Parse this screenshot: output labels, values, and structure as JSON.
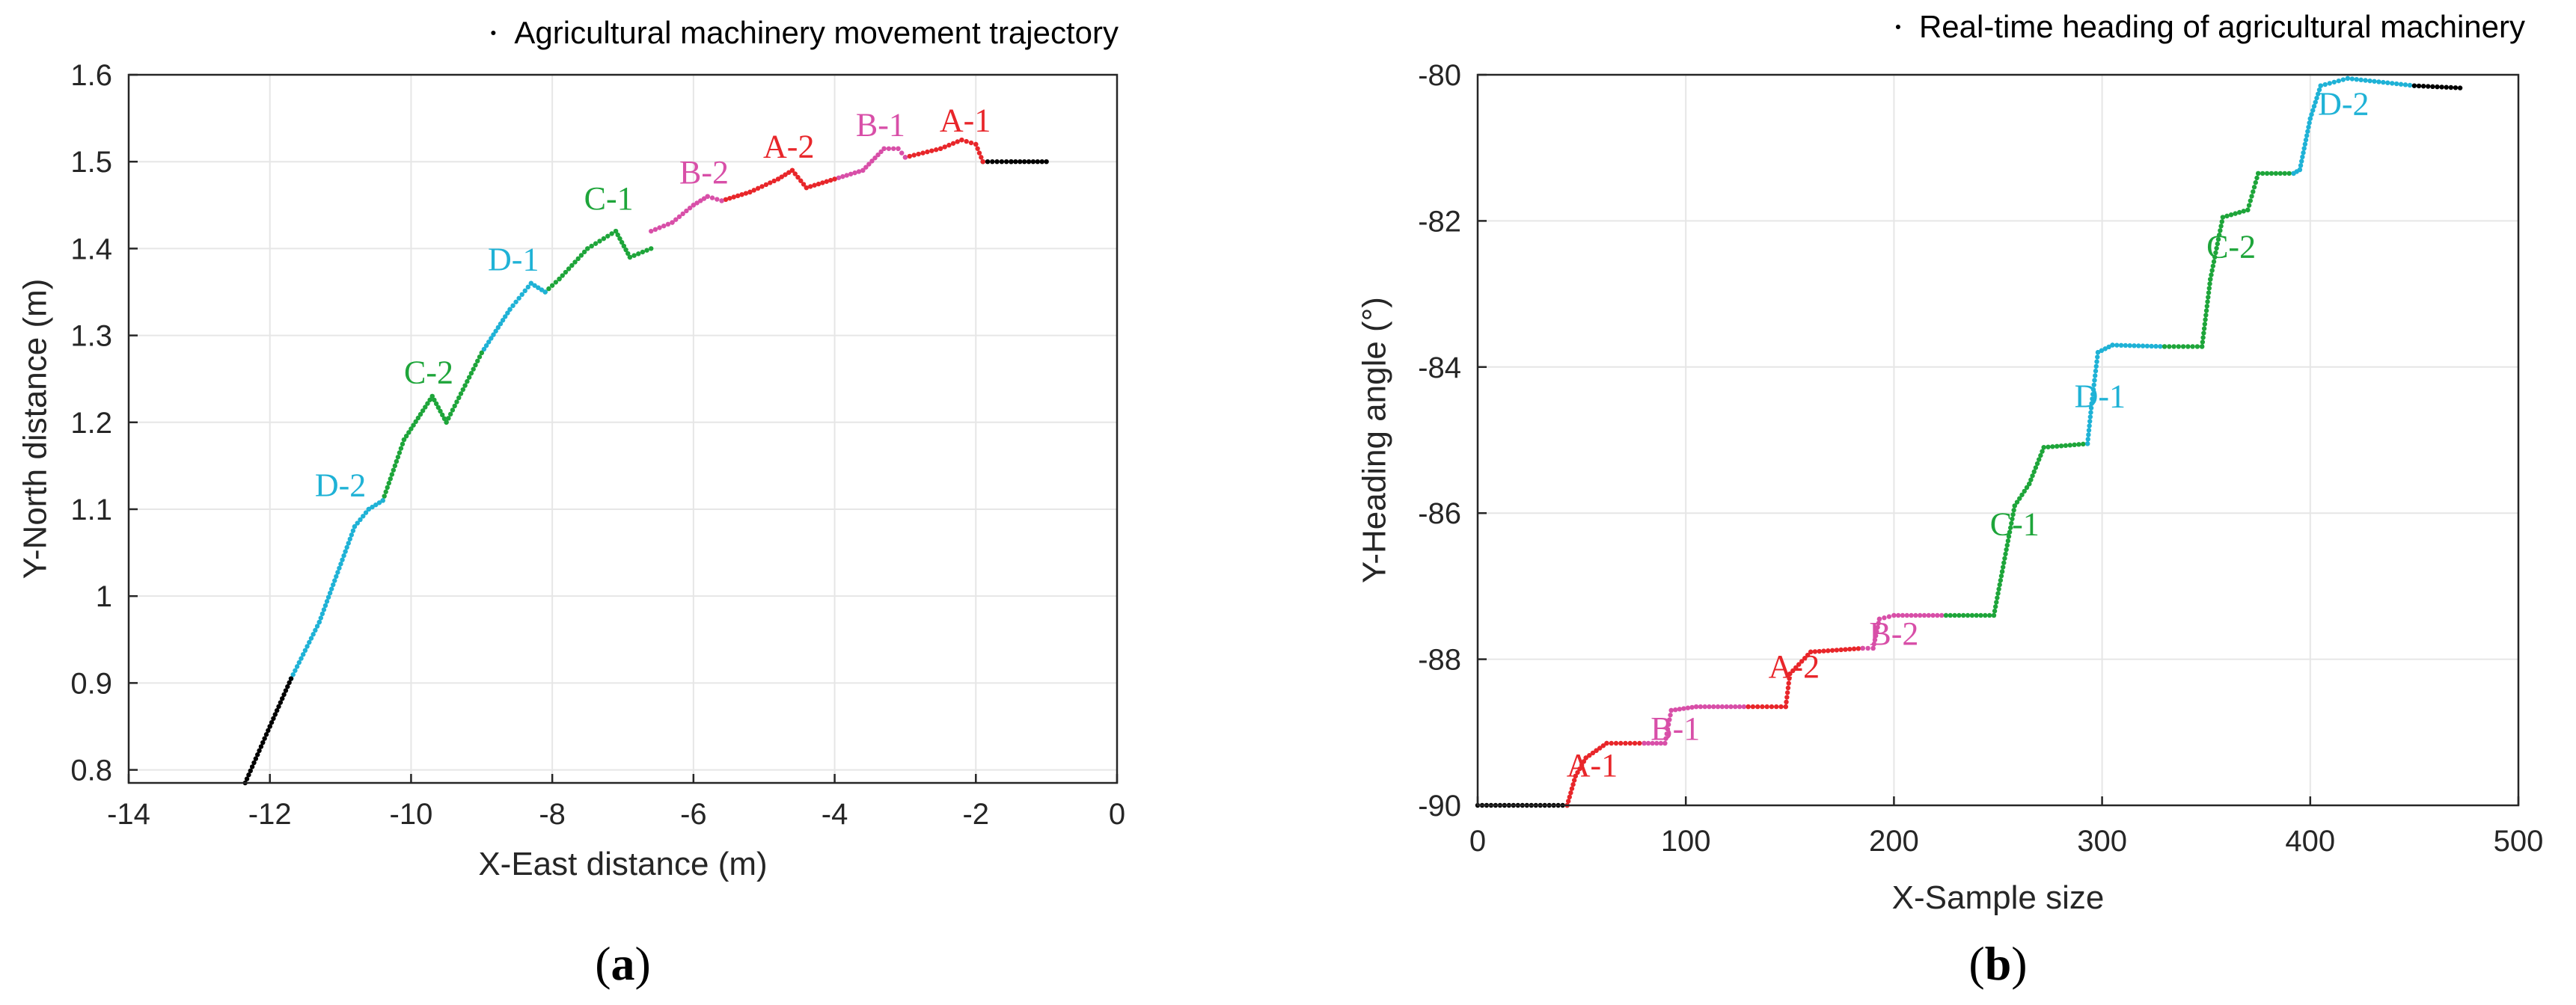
{
  "colors": {
    "A": "#e8262a",
    "B": "#d84fa8",
    "C": "#1ea53a",
    "D": "#1fb2d6",
    "base": "#000000",
    "axis": "#262626",
    "grid": "#e6e6e6"
  },
  "chart_data": [
    {
      "type": "scatter",
      "legend": "Agricultural machinery movement trajectory",
      "legend_position": "top-right",
      "xlabel": "X-East distance (m)",
      "ylabel": "Y-North distance (m)",
      "xlim": [
        -14,
        0
      ],
      "ylim": [
        0.785,
        1.6
      ],
      "xticks": [
        -14,
        -12,
        -10,
        -8,
        -6,
        -4,
        -2,
        0
      ],
      "xtick_labels": [
        "-14",
        "-12",
        "-10",
        "-8",
        "-6",
        "-4",
        "-2",
        "0"
      ],
      "yticks": [
        0.8,
        0.9,
        1.0,
        1.1,
        1.2,
        1.3,
        1.4,
        1.5,
        1.6
      ],
      "ytick_labels": [
        "0.8",
        "0.9",
        "1",
        "1.1",
        "1.2",
        "1.3",
        "1.4",
        "1.5",
        "1.6"
      ],
      "grid": true,
      "caption": "a",
      "series": [
        {
          "group": "base",
          "points": [
            [
              -1.0,
              1.5
            ],
            [
              -1.5,
              1.5
            ],
            [
              -1.9,
              1.5
            ]
          ]
        },
        {
          "group": "A",
          "points": [
            [
              -1.9,
              1.5
            ],
            [
              -2.0,
              1.52
            ],
            [
              -2.2,
              1.525
            ],
            [
              -2.5,
              1.515
            ],
            [
              -3.0,
              1.505
            ]
          ]
        },
        {
          "group": "B",
          "points": [
            [
              -3.0,
              1.505
            ],
            [
              -3.1,
              1.515
            ],
            [
              -3.3,
              1.515
            ],
            [
              -3.6,
              1.49
            ],
            [
              -4.0,
              1.48
            ]
          ]
        },
        {
          "group": "A",
          "points": [
            [
              -4.0,
              1.48
            ],
            [
              -4.4,
              1.47
            ],
            [
              -4.6,
              1.49
            ],
            [
              -4.8,
              1.48
            ],
            [
              -5.2,
              1.465
            ],
            [
              -5.6,
              1.455
            ]
          ]
        },
        {
          "group": "B",
          "points": [
            [
              -5.6,
              1.455
            ],
            [
              -5.8,
              1.46
            ],
            [
              -6.0,
              1.45
            ],
            [
              -6.3,
              1.43
            ],
            [
              -6.6,
              1.42
            ]
          ]
        },
        {
          "group": "C",
          "points": [
            [
              -6.6,
              1.4
            ],
            [
              -6.9,
              1.39
            ],
            [
              -7.1,
              1.42
            ],
            [
              -7.5,
              1.4
            ],
            [
              -7.9,
              1.365
            ],
            [
              -8.1,
              1.35
            ]
          ]
        },
        {
          "group": "D",
          "points": [
            [
              -8.1,
              1.35
            ],
            [
              -8.3,
              1.36
            ],
            [
              -8.6,
              1.33
            ],
            [
              -9.0,
              1.28
            ]
          ]
        },
        {
          "group": "C",
          "points": [
            [
              -9.0,
              1.28
            ],
            [
              -9.5,
              1.2
            ],
            [
              -9.7,
              1.23
            ],
            [
              -10.1,
              1.18
            ],
            [
              -10.4,
              1.11
            ]
          ]
        },
        {
          "group": "D",
          "points": [
            [
              -10.4,
              1.11
            ],
            [
              -10.6,
              1.1
            ],
            [
              -10.8,
              1.08
            ],
            [
              -11.3,
              0.97
            ],
            [
              -11.7,
              0.905
            ]
          ]
        },
        {
          "group": "base",
          "points": [
            [
              -11.7,
              0.905
            ],
            [
              -12.0,
              0.85
            ],
            [
              -12.35,
              0.785
            ]
          ]
        }
      ],
      "labels": [
        {
          "text": "A-1",
          "group": "A",
          "x": -2.15,
          "y": 1.535
        },
        {
          "text": "B-1",
          "group": "B",
          "x": -3.35,
          "y": 1.53
        },
        {
          "text": "A-2",
          "group": "A",
          "x": -4.65,
          "y": 1.505
        },
        {
          "text": "B-2",
          "group": "B",
          "x": -5.85,
          "y": 1.475
        },
        {
          "text": "C-1",
          "group": "C",
          "x": -7.2,
          "y": 1.445
        },
        {
          "text": "D-1",
          "group": "D",
          "x": -8.55,
          "y": 1.375
        },
        {
          "text": "C-2",
          "group": "C",
          "x": -9.75,
          "y": 1.245
        },
        {
          "text": "D-2",
          "group": "D",
          "x": -11.0,
          "y": 1.115
        }
      ]
    },
    {
      "type": "scatter",
      "legend": "Real-time heading of agricultural machinery",
      "legend_position": "top-right",
      "xlabel": "X-Sample size",
      "ylabel": "Y-Heading angle (°)",
      "xlim": [
        0,
        500
      ],
      "ylim": [
        -90,
        -80
      ],
      "xticks": [
        0,
        100,
        200,
        300,
        400,
        500
      ],
      "xtick_labels": [
        "0",
        "100",
        "200",
        "300",
        "400",
        "500"
      ],
      "yticks": [
        -90,
        -88,
        -86,
        -84,
        -82,
        -80
      ],
      "ytick_labels": [
        "-90",
        "-88",
        "-86",
        "-84",
        "-82",
        "-80"
      ],
      "grid": true,
      "caption": "b",
      "series": [
        {
          "group": "base",
          "points": [
            [
              0,
              -90.0
            ],
            [
              43,
              -90.0
            ]
          ]
        },
        {
          "group": "A",
          "points": [
            [
              43,
              -90.0
            ],
            [
              47,
              -89.6
            ],
            [
              52,
              -89.35
            ],
            [
              57,
              -89.25
            ],
            [
              62,
              -89.15
            ],
            [
              80,
              -89.15
            ]
          ]
        },
        {
          "group": "B",
          "points": [
            [
              80,
              -89.15
            ],
            [
              90,
              -89.15
            ],
            [
              93,
              -88.7
            ],
            [
              105,
              -88.65
            ],
            [
              130,
              -88.65
            ]
          ]
        },
        {
          "group": "A",
          "points": [
            [
              130,
              -88.65
            ],
            [
              148,
              -88.65
            ],
            [
              150,
              -88.2
            ],
            [
              160,
              -87.9
            ],
            [
              185,
              -87.85
            ]
          ]
        },
        {
          "group": "B",
          "points": [
            [
              185,
              -87.85
            ],
            [
              190,
              -87.85
            ],
            [
              193,
              -87.45
            ],
            [
              200,
              -87.4
            ],
            [
              225,
              -87.4
            ]
          ]
        },
        {
          "group": "C",
          "points": [
            [
              225,
              -87.4
            ],
            [
              248,
              -87.4
            ],
            [
              252,
              -86.8
            ],
            [
              258,
              -85.9
            ],
            [
              265,
              -85.6
            ],
            [
              272,
              -85.1
            ],
            [
              293,
              -85.05
            ]
          ]
        },
        {
          "group": "D",
          "points": [
            [
              293,
              -85.05
            ],
            [
              295,
              -84.5
            ],
            [
              298,
              -83.8
            ],
            [
              305,
              -83.7
            ],
            [
              330,
              -83.72
            ]
          ]
        },
        {
          "group": "C",
          "points": [
            [
              330,
              -83.72
            ],
            [
              348,
              -83.72
            ],
            [
              352,
              -82.8
            ],
            [
              358,
              -81.95
            ],
            [
              370,
              -81.85
            ],
            [
              375,
              -81.35
            ],
            [
              392,
              -81.35
            ]
          ]
        },
        {
          "group": "D",
          "points": [
            [
              392,
              -81.35
            ],
            [
              395,
              -81.3
            ],
            [
              400,
              -80.6
            ],
            [
              405,
              -80.15
            ],
            [
              418,
              -80.05
            ],
            [
              450,
              -80.15
            ]
          ]
        },
        {
          "group": "base",
          "points": [
            [
              450,
              -80.15
            ],
            [
              472,
              -80.18
            ]
          ]
        }
      ],
      "labels": [
        {
          "text": "A-1",
          "group": "A",
          "x": 55,
          "y": -89.6
        },
        {
          "text": "B-1",
          "group": "B",
          "x": 95,
          "y": -89.1
        },
        {
          "text": "A-2",
          "group": "A",
          "x": 152,
          "y": -88.25
        },
        {
          "text": "B-2",
          "group": "B",
          "x": 200,
          "y": -87.8
        },
        {
          "text": "C-1",
          "group": "C",
          "x": 258,
          "y": -86.3
        },
        {
          "text": "D-1",
          "group": "D",
          "x": 299,
          "y": -84.55
        },
        {
          "text": "C-2",
          "group": "C",
          "x": 362,
          "y": -82.5
        },
        {
          "text": "D-2",
          "group": "D",
          "x": 416,
          "y": -80.55
        }
      ]
    }
  ]
}
